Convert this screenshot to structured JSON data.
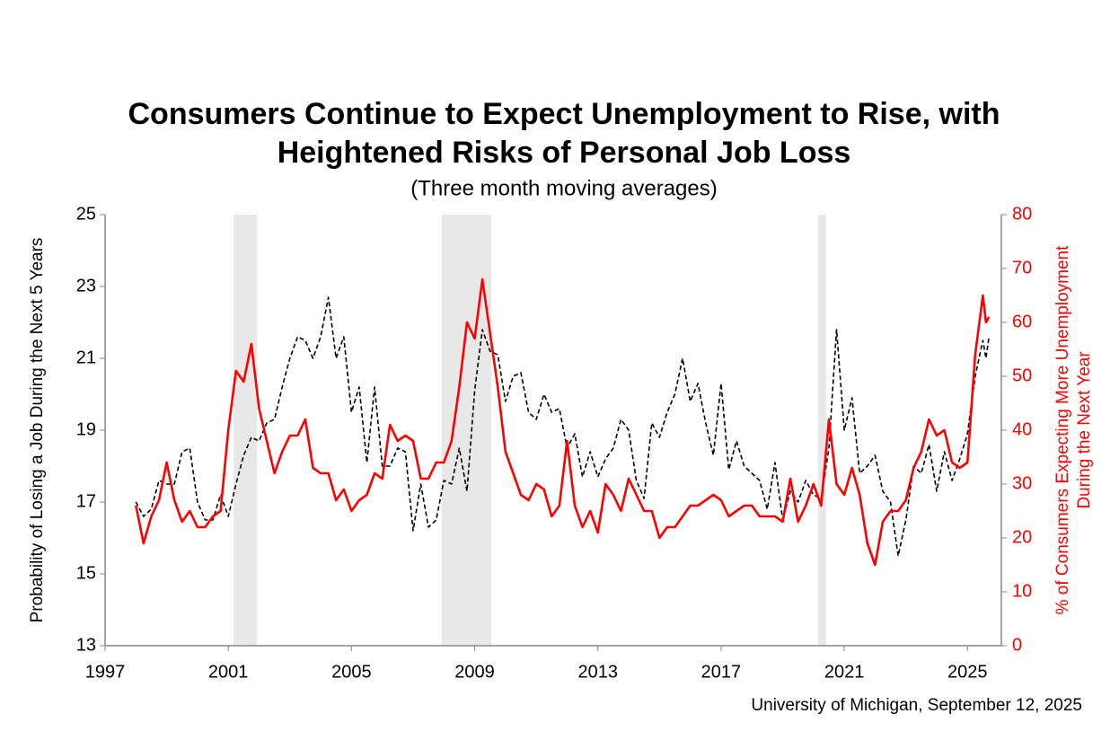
{
  "chart_data": {
    "type": "line",
    "title": [
      "Consumers Continue to Expect Unemployment to Rise, with",
      "Heightened Risks of Personal Job Loss"
    ],
    "subtitle": "(Three month moving averages)",
    "ylabel": "Probability of Losing a Job During the Next 5 Years",
    "y2label": [
      "% of Consumers Expecting More Unemployment",
      "During the Next Year"
    ],
    "source": "University of Michigan, September 12, 2025",
    "xlim": [
      1997,
      2026.1
    ],
    "xticks": [
      1997,
      2001,
      2005,
      2009,
      2013,
      2017,
      2021,
      2025
    ],
    "ylim": [
      13,
      25
    ],
    "yticks": [
      13,
      15,
      17,
      19,
      21,
      23,
      25
    ],
    "y2lim": [
      0,
      80
    ],
    "y2ticks": [
      0,
      10,
      20,
      30,
      40,
      50,
      60,
      70,
      80
    ],
    "y2color": "#ff0000",
    "shaded_periods": [
      [
        2001.17,
        2001.93
      ],
      [
        2007.93,
        2009.54
      ],
      [
        2020.15,
        2020.41
      ]
    ],
    "shade_color": "#e8e8e8",
    "x": [
      1998.0,
      1998.25,
      1998.5,
      1998.75,
      1999.0,
      1999.25,
      1999.5,
      1999.75,
      2000.0,
      2000.25,
      2000.5,
      2000.75,
      2001.0,
      2001.25,
      2001.5,
      2001.75,
      2002.0,
      2002.25,
      2002.5,
      2002.75,
      2003.0,
      2003.25,
      2003.5,
      2003.75,
      2004.0,
      2004.25,
      2004.5,
      2004.75,
      2005.0,
      2005.25,
      2005.5,
      2005.75,
      2006.0,
      2006.25,
      2006.5,
      2006.75,
      2007.0,
      2007.25,
      2007.5,
      2007.75,
      2008.0,
      2008.25,
      2008.5,
      2008.75,
      2009.0,
      2009.25,
      2009.5,
      2009.75,
      2010.0,
      2010.25,
      2010.5,
      2010.75,
      2011.0,
      2011.25,
      2011.5,
      2011.75,
      2012.0,
      2012.25,
      2012.5,
      2012.75,
      2013.0,
      2013.25,
      2013.5,
      2013.75,
      2014.0,
      2014.25,
      2014.5,
      2014.75,
      2015.0,
      2015.25,
      2015.5,
      2015.75,
      2016.0,
      2016.25,
      2016.5,
      2016.75,
      2017.0,
      2017.25,
      2017.5,
      2017.75,
      2018.0,
      2018.25,
      2018.5,
      2018.75,
      2019.0,
      2019.25,
      2019.5,
      2019.75,
      2020.0,
      2020.25,
      2020.5,
      2020.75,
      2021.0,
      2021.25,
      2021.5,
      2021.75,
      2022.0,
      2022.25,
      2022.5,
      2022.75,
      2023.0,
      2023.25,
      2023.5,
      2023.75,
      2024.0,
      2024.25,
      2024.5,
      2024.75,
      2025.0,
      2025.25,
      2025.5,
      2025.6,
      2025.7
    ],
    "series": [
      {
        "color": "#000000",
        "dashed": true,
        "axis": "y",
        "values": [
          17.0,
          16.6,
          16.8,
          17.6,
          17.5,
          17.5,
          18.4,
          18.5,
          17.0,
          16.5,
          16.5,
          17.2,
          16.6,
          17.5,
          18.3,
          18.8,
          18.7,
          19.2,
          19.3,
          20.2,
          21.0,
          21.6,
          21.5,
          21.0,
          21.6,
          22.7,
          21.0,
          21.6,
          19.5,
          20.2,
          18.1,
          20.2,
          18.0,
          18.0,
          18.5,
          18.4,
          16.2,
          17.5,
          16.3,
          16.5,
          17.6,
          17.5,
          18.5,
          17.3,
          20.1,
          21.8,
          21.2,
          21.1,
          19.8,
          20.5,
          20.6,
          19.5,
          19.3,
          20.0,
          19.5,
          19.6,
          18.5,
          18.9,
          17.7,
          18.4,
          17.7,
          18.2,
          18.5,
          19.3,
          19.0,
          17.6,
          17.1,
          19.2,
          18.8,
          19.5,
          20.0,
          21.0,
          19.8,
          20.3,
          19.2,
          18.3,
          20.3,
          17.9,
          18.7,
          18.0,
          17.8,
          17.6,
          16.8,
          18.1,
          16.5,
          17.3,
          17.0,
          17.6,
          17.2,
          17.1,
          18.5,
          21.8,
          19.0,
          19.9,
          17.8,
          18.0,
          18.3,
          17.3,
          17.0,
          15.5,
          16.5,
          18.0,
          17.8,
          18.6,
          17.3,
          18.4,
          17.6,
          18.2,
          18.9,
          20.5,
          21.5,
          21.0,
          21.6
        ]
      },
      {
        "color": "#ff0000",
        "dashed": false,
        "axis": "y2",
        "values": [
          26,
          19,
          24,
          27,
          34,
          27,
          23,
          25,
          22,
          22,
          24,
          25,
          40,
          51,
          49,
          56,
          44,
          38,
          32,
          36,
          39,
          39,
          42,
          33,
          32,
          32,
          27,
          29,
          25,
          27,
          28,
          32,
          31,
          41,
          38,
          39,
          38,
          31,
          31,
          34,
          34,
          38,
          48,
          60,
          57,
          68,
          58,
          48,
          36,
          32,
          28,
          27,
          30,
          29,
          24,
          26,
          38,
          26,
          22,
          25,
          21,
          30,
          28,
          25,
          31,
          28,
          25,
          25,
          20,
          22,
          22,
          24,
          26,
          26,
          27,
          28,
          27,
          24,
          25,
          26,
          26,
          24,
          24,
          24,
          23,
          31,
          23,
          26,
          30,
          26,
          42,
          30,
          28,
          33,
          28,
          19,
          15,
          23,
          25,
          25,
          27,
          33,
          36,
          42,
          39,
          40,
          34,
          33,
          34,
          54,
          65,
          60,
          61
        ]
      }
    ]
  }
}
